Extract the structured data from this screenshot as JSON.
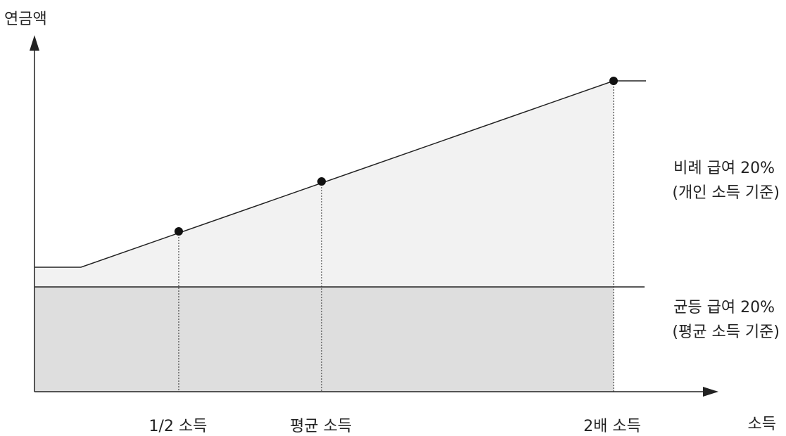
{
  "y_axis_label": "연금액",
  "x_axis_label": "소득",
  "tick_labels": {
    "half": "1/2 소득",
    "average": "평균 소득",
    "double": "2배 소득"
  },
  "regions": {
    "proportional": {
      "line1": "비례 급여 20%",
      "line2": "(개인 소득 기준)",
      "fill": "#f2f2f2"
    },
    "flat": {
      "line1": "균등 급여 20%",
      "line2": "(평균 소득 기준)",
      "fill": "#dedede"
    }
  }
}
